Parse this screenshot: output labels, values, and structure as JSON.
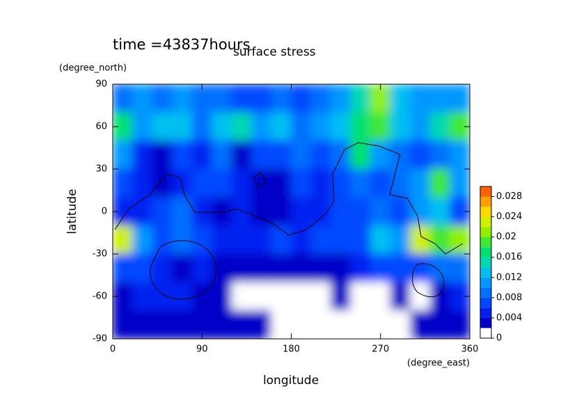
{
  "chart_data": {
    "type": "heatmap",
    "title": "surface stress",
    "subtitle": "time =43837hours",
    "x_label": "longitude",
    "x_unit": "(degree_east)",
    "y_label": "latitude",
    "y_unit": "(degree_north)",
    "xlim": [
      0,
      360
    ],
    "xticks": [
      0,
      90,
      180,
      270,
      360
    ],
    "ylim": [
      -90,
      90
    ],
    "yticks": [
      -90,
      -60,
      -30,
      0,
      30,
      60,
      90
    ],
    "x": [
      10,
      30,
      50,
      70,
      90,
      110,
      130,
      150,
      170,
      190,
      210,
      230,
      250,
      270,
      290,
      310,
      330,
      350
    ],
    "y": [
      80,
      60,
      40,
      20,
      0,
      -20,
      -40,
      -60,
      -80
    ],
    "z": [
      [
        0.008,
        0.01,
        0.008,
        0.01,
        0.008,
        0.008,
        0.006,
        0.006,
        0.008,
        0.006,
        0.008,
        0.01,
        0.014,
        0.02,
        0.012,
        0.01,
        0.01,
        0.01
      ],
      [
        0.016,
        0.01,
        0.012,
        0.012,
        0.008,
        0.012,
        0.014,
        0.01,
        0.012,
        0.008,
        0.01,
        0.012,
        0.016,
        0.018,
        0.012,
        0.01,
        0.014,
        0.018
      ],
      [
        0.01,
        0.004,
        0.002,
        0.006,
        0.004,
        0.008,
        0.002,
        0.006,
        0.006,
        0.008,
        0.006,
        0.008,
        0.016,
        0.01,
        0.008,
        0.006,
        0.008,
        0.01
      ],
      [
        0.006,
        0.004,
        0.002,
        0.004,
        0.006,
        0.006,
        0.004,
        0.002,
        0.002,
        0.006,
        0.004,
        0.006,
        0.008,
        0.006,
        0.008,
        0.01,
        0.018,
        0.01
      ],
      [
        0.004,
        0.004,
        0.006,
        0.008,
        0.004,
        0.002,
        0.004,
        0.002,
        0.002,
        0.004,
        0.004,
        0.006,
        0.006,
        0.008,
        0.006,
        0.01,
        0.012,
        0.006
      ],
      [
        0.022,
        0.01,
        0.006,
        0.008,
        0.006,
        0.004,
        0.004,
        0.004,
        0.006,
        0.004,
        0.006,
        0.006,
        0.006,
        0.012,
        0.01,
        0.022,
        0.018,
        0.02
      ],
      [
        0.006,
        0.006,
        0.004,
        0.002,
        0.004,
        0.002,
        0.002,
        0.002,
        0.002,
        0.002,
        0.002,
        0.002,
        0.004,
        0.006,
        0.006,
        0.006,
        0.008,
        0.008
      ],
      [
        0.002,
        0.004,
        0.004,
        0.004,
        0.002,
        0.002,
        0,
        0,
        0,
        0,
        0,
        0.002,
        0,
        0,
        0.002,
        0,
        0.002,
        0.004
      ],
      [
        0.002,
        0.002,
        0.002,
        0.002,
        0.002,
        0.002,
        0.002,
        0.002,
        0,
        0,
        0,
        0,
        0,
        0,
        0,
        0.002,
        0.002,
        0.002
      ]
    ],
    "clim": [
      0,
      0.03
    ],
    "level_step": 0.002,
    "colors": [
      "#ffffff",
      "#0000c8",
      "#0020f0",
      "#0048ff",
      "#0070ff",
      "#0098ff",
      "#00c0f0",
      "#00d8b0",
      "#00e070",
      "#40e830",
      "#90f000",
      "#d0f000",
      "#ffd800",
      "#ffa000",
      "#ff6000"
    ],
    "cbar_ticks": [
      0,
      0.004,
      0.008,
      0.012,
      0.016,
      0.02,
      0.024,
      0.028
    ]
  }
}
